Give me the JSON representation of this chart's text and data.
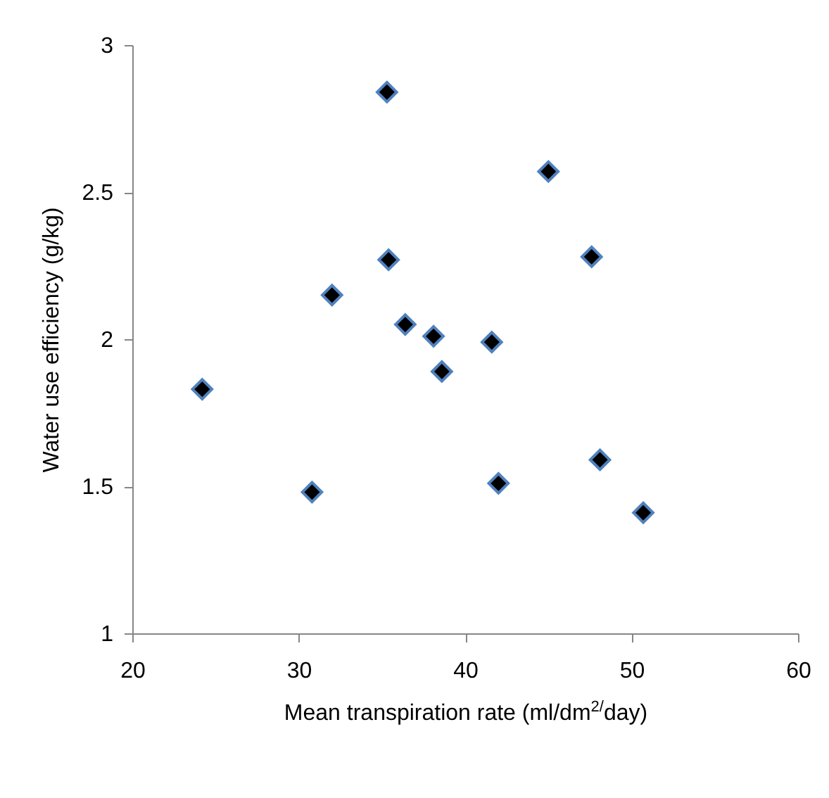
{
  "chart_data": {
    "type": "scatter",
    "xlabel": "Mean transpiration rate (ml/dm$^{2/}$day)",
    "ylabel": "Water use efficiency (g/kg)",
    "x": [
      24.2,
      30.8,
      32.0,
      35.3,
      35.4,
      36.4,
      38.1,
      38.6,
      41.6,
      42.0,
      45.0,
      47.6,
      48.1,
      50.7
    ],
    "series": [
      {
        "color": "#000000",
        "values": [
          1.83,
          1.48,
          2.15,
          2.84,
          2.27,
          2.05,
          2.01,
          1.89,
          1.99,
          1.51,
          2.57,
          2.28,
          1.59,
          1.41
        ]
      }
    ],
    "xlim": [
      20,
      60
    ],
    "xticks": [
      20,
      30,
      40,
      50,
      60
    ],
    "ylim": [
      1,
      3
    ],
    "yticks": [
      1,
      1.5,
      2,
      2.5,
      3
    ],
    "marker": "diamond",
    "grid": false,
    "legend": false
  }
}
